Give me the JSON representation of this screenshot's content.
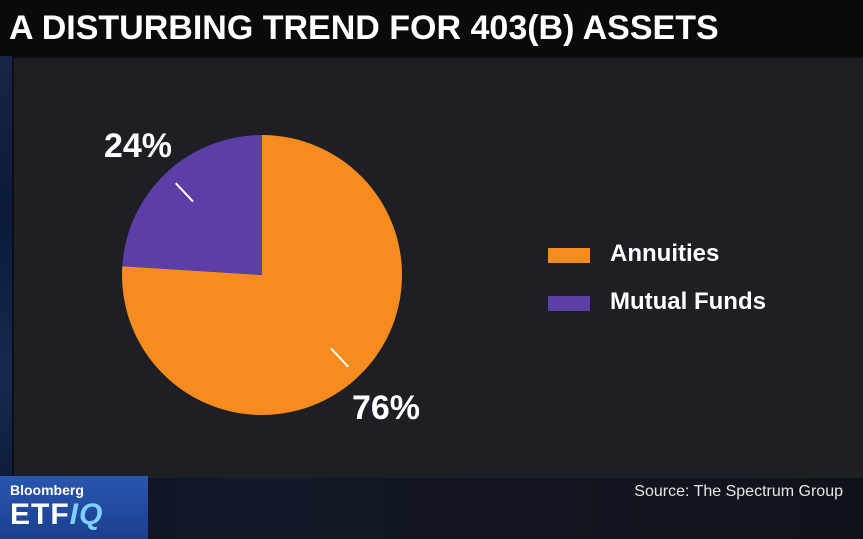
{
  "title": "A DISTURBING TREND FOR 403(B) ASSETS",
  "source": "Source: The Spectrum Group",
  "logo": {
    "top": "Bloomberg",
    "bottom_main": "ETF",
    "bottom_accent": "IQ"
  },
  "colors": {
    "annuities": "#f68b1f",
    "mutual_funds": "#5b3fa6",
    "background": "#1e1f24"
  },
  "chart_data": {
    "type": "pie",
    "title": "A DISTURBING TREND FOR 403(B) ASSETS",
    "categories": [
      "Annuities",
      "Mutual Funds"
    ],
    "values": [
      76,
      24
    ],
    "labels": [
      "76%",
      "24%"
    ],
    "colors": [
      "#f68b1f",
      "#5b3fa6"
    ],
    "legend_position": "right"
  }
}
